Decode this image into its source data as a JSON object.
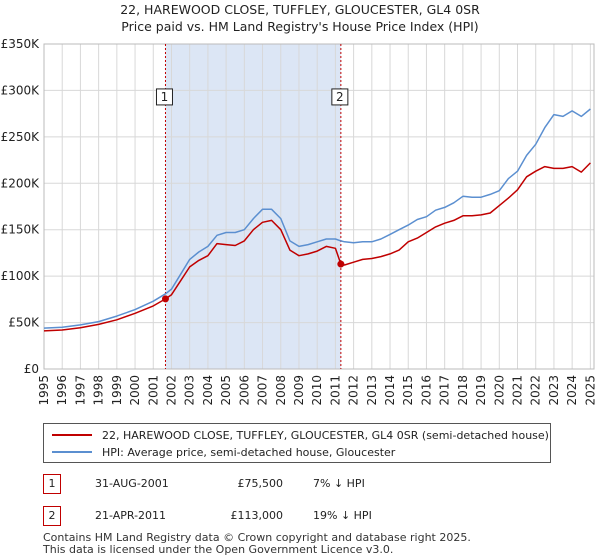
{
  "title_line1": "22, HAREWOOD CLOSE, TUFFLEY, GLOUCESTER, GL4 0SR",
  "title_line2": "Price paid vs. HM Land Registry's House Price Index (HPI)",
  "colors": {
    "property": "#c00000",
    "hpi": "#5b8fd0",
    "shade": "#dce6f5",
    "grid": "#d8d8d8",
    "marker_line": "#c00000"
  },
  "chart_data": {
    "type": "line",
    "title": "22, HAREWOOD CLOSE, TUFFLEY, GLOUCESTER, GL4 0SR — Price paid vs. HM Land Registry's House Price Index (HPI)",
    "xlabel": "",
    "ylabel": "",
    "xlim": [
      1995.0,
      2025.2
    ],
    "ylim": [
      0,
      350000
    ],
    "y_ticks": [
      0,
      50000,
      100000,
      150000,
      200000,
      250000,
      300000,
      350000
    ],
    "y_tick_labels": [
      "£0",
      "£50K",
      "£100K",
      "£150K",
      "£200K",
      "£250K",
      "£300K",
      "£350K"
    ],
    "x_ticks": [
      "1995",
      "1996",
      "1997",
      "1998",
      "1999",
      "2000",
      "2001",
      "2002",
      "2003",
      "2004",
      "2005",
      "2006",
      "2007",
      "2008",
      "2009",
      "2010",
      "2011",
      "2012",
      "2013",
      "2014",
      "2015",
      "2016",
      "2017",
      "2018",
      "2019",
      "2020",
      "2021",
      "2022",
      "2023",
      "2024",
      "2025"
    ],
    "grid": true,
    "shaded_range": [
      2001.67,
      2011.3
    ],
    "series": [
      {
        "name": "22, HAREWOOD CLOSE, TUFFLEY, GLOUCESTER, GL4 0SR (semi-detached house)",
        "x": [
          1995.0,
          1996.0,
          1997.0,
          1998.0,
          1999.0,
          2000.0,
          2001.0,
          2001.67,
          2002.0,
          2002.5,
          2003.0,
          2003.5,
          2004.0,
          2004.5,
          2005.0,
          2005.5,
          2006.0,
          2006.5,
          2007.0,
          2007.5,
          2008.0,
          2008.5,
          2009.0,
          2009.5,
          2010.0,
          2010.5,
          2011.0,
          2011.3,
          2011.5,
          2012.0,
          2012.5,
          2013.0,
          2013.5,
          2014.0,
          2014.5,
          2015.0,
          2015.5,
          2016.0,
          2016.5,
          2017.0,
          2017.5,
          2018.0,
          2018.5,
          2019.0,
          2019.5,
          2020.0,
          2020.5,
          2021.0,
          2021.5,
          2022.0,
          2022.5,
          2023.0,
          2023.5,
          2024.0,
          2024.5,
          2025.0
        ],
        "values": [
          41000,
          42000,
          44500,
          48000,
          53000,
          60000,
          68000,
          75500,
          80000,
          95000,
          110000,
          117000,
          122000,
          135000,
          134000,
          133000,
          138000,
          150000,
          158000,
          160000,
          150000,
          128000,
          122000,
          124000,
          127000,
          132000,
          130000,
          113000,
          112000,
          115000,
          118000,
          119000,
          121000,
          124000,
          128000,
          137000,
          141000,
          147000,
          153000,
          157000,
          160000,
          165000,
          165000,
          166000,
          168000,
          176000,
          184000,
          193000,
          207000,
          213000,
          218000,
          216000,
          216000,
          218000,
          212000,
          222000
        ]
      },
      {
        "name": "HPI: Average price, semi-detached house, Gloucester",
        "x": [
          1995.0,
          1996.0,
          1997.0,
          1998.0,
          1999.0,
          2000.0,
          2001.0,
          2001.67,
          2002.0,
          2002.5,
          2003.0,
          2003.5,
          2004.0,
          2004.5,
          2005.0,
          2005.5,
          2006.0,
          2006.5,
          2007.0,
          2007.5,
          2008.0,
          2008.5,
          2009.0,
          2009.5,
          2010.0,
          2010.5,
          2011.0,
          2011.3,
          2011.5,
          2012.0,
          2012.5,
          2013.0,
          2013.5,
          2014.0,
          2014.5,
          2015.0,
          2015.5,
          2016.0,
          2016.5,
          2017.0,
          2017.5,
          2018.0,
          2018.5,
          2019.0,
          2019.5,
          2020.0,
          2020.5,
          2021.0,
          2021.5,
          2022.0,
          2022.5,
          2023.0,
          2023.5,
          2024.0,
          2024.5,
          2025.0
        ],
        "values": [
          44000,
          45000,
          47500,
          51000,
          57000,
          64000,
          73000,
          81000,
          86000,
          102000,
          118000,
          126000,
          132000,
          144000,
          147000,
          147000,
          150000,
          162000,
          172000,
          172000,
          162000,
          138000,
          132000,
          134000,
          137000,
          140000,
          140000,
          138000,
          137000,
          136000,
          137000,
          137000,
          140000,
          145000,
          150000,
          155000,
          161000,
          164000,
          171000,
          174000,
          179000,
          186000,
          185000,
          185000,
          188000,
          192000,
          205000,
          213000,
          230000,
          242000,
          260000,
          274000,
          272000,
          278000,
          272000,
          280000
        ]
      }
    ],
    "sales": [
      {
        "label": "1",
        "date": "31-AUG-2001",
        "x": 2001.67,
        "price": 75500
      },
      {
        "label": "2",
        "date": "21-APR-2011",
        "x": 2011.3,
        "price": 113000
      }
    ],
    "annotation_y": 293000
  },
  "legend": {
    "property_label": "22, HAREWOOD CLOSE, TUFFLEY, GLOUCESTER, GL4 0SR (semi-detached house)",
    "hpi_label": "HPI: Average price, semi-detached house, Gloucester"
  },
  "sales_table": [
    {
      "num": "1",
      "date": "31-AUG-2001",
      "price": "£75,500",
      "hpi": "7% ↓ HPI"
    },
    {
      "num": "2",
      "date": "21-APR-2011",
      "price": "£113,000",
      "hpi": "19% ↓ HPI"
    }
  ],
  "footer_line1": "Contains HM Land Registry data © Crown copyright and database right 2025.",
  "footer_line2": "This data is licensed under the Open Government Licence v3.0."
}
